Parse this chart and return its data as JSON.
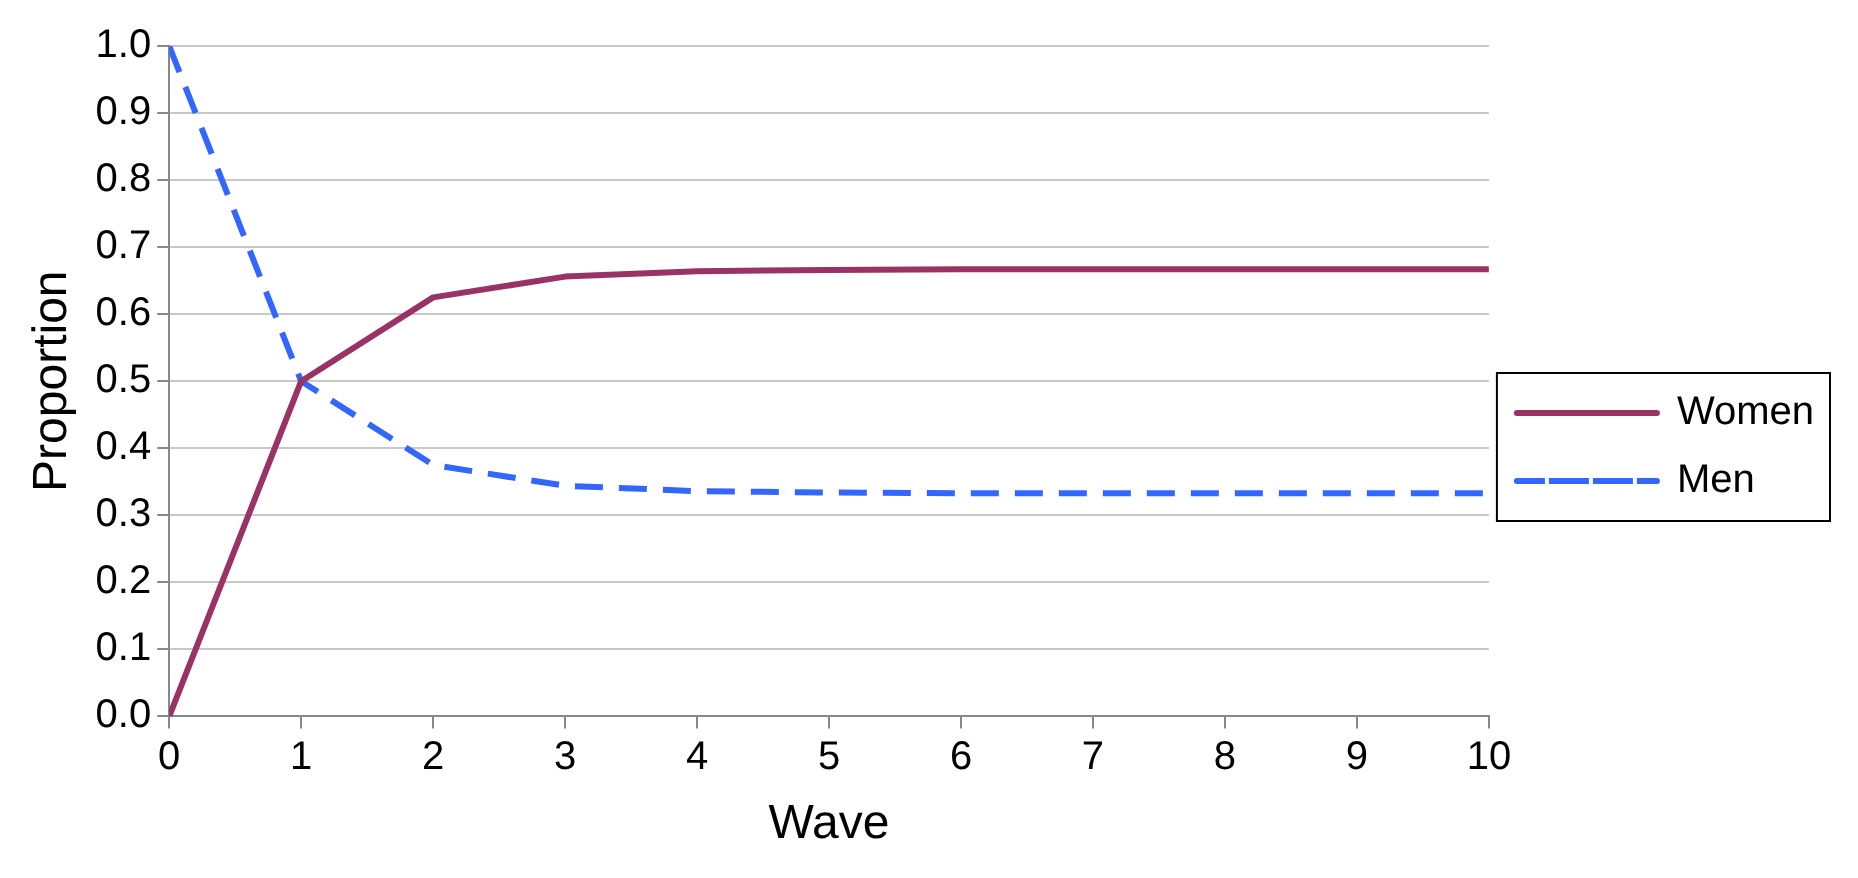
{
  "chart_data": {
    "type": "line",
    "xlabel": "Wave",
    "ylabel": "Proportion",
    "x": [
      0,
      1,
      2,
      3,
      4,
      5,
      6,
      7,
      8,
      9,
      10
    ],
    "series": [
      {
        "name": "Women",
        "color": "#993366",
        "line_style": "solid",
        "values": [
          0,
          0.5,
          0.625,
          0.656,
          0.664,
          0.666,
          0.667,
          0.667,
          0.667,
          0.667,
          0.667
        ]
      },
      {
        "name": "Men",
        "color": "#3366ff",
        "line_style": "dashed",
        "values": [
          1,
          0.5,
          0.375,
          0.344,
          0.336,
          0.334,
          0.333,
          0.333,
          0.333,
          0.333,
          0.333
        ]
      }
    ],
    "xlim": [
      0,
      10
    ],
    "xticks": [
      0,
      1,
      2,
      3,
      4,
      5,
      6,
      7,
      8,
      9,
      10
    ],
    "ylim": [
      0,
      1
    ],
    "yticks": [
      "0.0",
      0.1,
      0.2,
      0.3,
      0.4,
      0.5,
      0.6,
      0.7,
      0.8,
      0.9,
      "1.0"
    ],
    "grid": "y",
    "legend": "right",
    "marker": "none"
  }
}
